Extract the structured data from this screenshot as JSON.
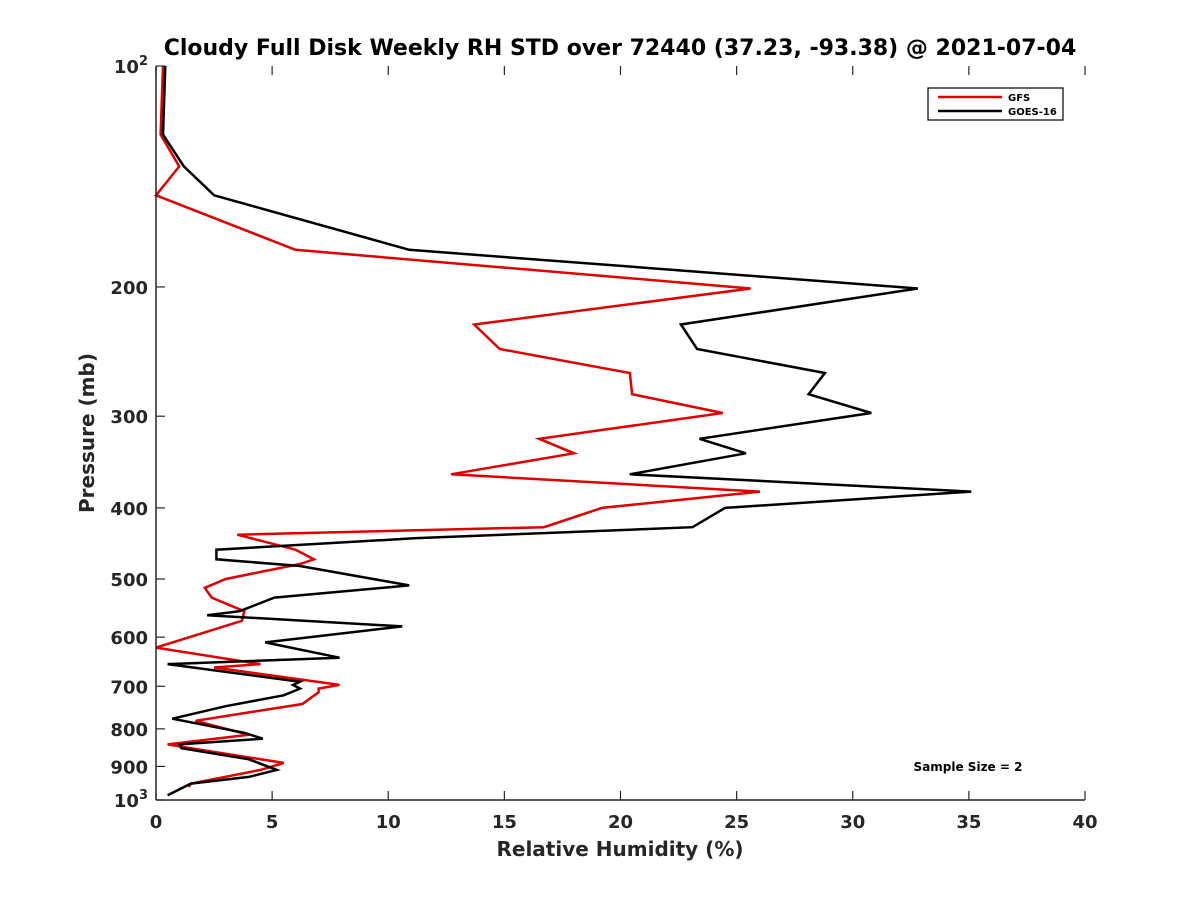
{
  "chart_data": {
    "type": "line",
    "title": "Cloudy Full Disk Weekly RH STD over 72440 (37.23, -93.38) @ 2021-07-04",
    "xlabel": "Relative Humidity (%)",
    "ylabel": "Pressure (mb)",
    "xlim": [
      0,
      40
    ],
    "ylim": [
      100,
      1000
    ],
    "y_scale": "log",
    "y_reversed": true,
    "x_ticks": [
      "0",
      "5",
      "10",
      "15",
      "20",
      "25",
      "30",
      "35",
      "40"
    ],
    "x_tick_values": [
      0,
      5,
      10,
      15,
      20,
      25,
      30,
      35,
      40
    ],
    "y_ticks": [
      {
        "value": 100,
        "base": "10",
        "sup": "2"
      },
      {
        "value": 200,
        "label": "200"
      },
      {
        "value": 300,
        "label": "300"
      },
      {
        "value": 400,
        "label": "400"
      },
      {
        "value": 500,
        "label": "500"
      },
      {
        "value": 600,
        "label": "600"
      },
      {
        "value": 700,
        "label": "700"
      },
      {
        "value": 800,
        "label": "800"
      },
      {
        "value": 900,
        "label": "900"
      },
      {
        "value": 1000,
        "base": "10",
        "sup": "3"
      }
    ],
    "grid": false,
    "legend_position": "top-right",
    "annotation": "Sample Size = 2",
    "series": [
      {
        "name": "GFS",
        "color": "#e00000",
        "x": [
          0.3,
          0.2,
          1.0,
          0.0,
          6.0,
          25.6,
          13.7,
          14.8,
          20.4,
          20.5,
          24.4,
          16.5,
          18.0,
          12.7,
          26.0,
          19.2,
          16.7,
          3.5,
          6.0,
          6.8,
          6.2,
          3.0,
          2.1,
          2.4,
          3.8,
          3.7,
          0.0,
          4.5,
          2.5,
          7.9,
          7.0,
          7.0,
          6.3,
          1.7,
          4.0,
          0.5,
          1.5,
          5.5,
          4.5,
          1.5,
          1.4
        ],
        "y": [
          100,
          124,
          137,
          150,
          178,
          201,
          225,
          243,
          262,
          280,
          297,
          322,
          337,
          360,
          380,
          400,
          425,
          435,
          456,
          470,
          477,
          500,
          514,
          530,
          553,
          570,
          620,
          653,
          660,
          697,
          705,
          713,
          740,
          780,
          815,
          840,
          850,
          890,
          910,
          950,
          960
        ]
      },
      {
        "name": "GOES-16",
        "color": "#000000",
        "x": [
          0.4,
          0.3,
          1.2,
          2.5,
          10.9,
          32.8,
          22.6,
          23.3,
          28.8,
          28.1,
          30.8,
          23.4,
          25.4,
          20.4,
          35.1,
          24.5,
          23.1,
          11.1,
          2.6,
          2.6,
          6.2,
          10.9,
          5.1,
          3.6,
          2.2,
          10.6,
          4.7,
          7.9,
          0.5,
          6.2,
          5.9,
          6.2,
          5.5,
          3.0,
          0.7,
          3.8,
          4.6,
          1.0,
          1.1,
          4.0,
          5.2,
          4.0,
          1.5,
          0.5
        ],
        "y": [
          100,
          124,
          137,
          150,
          178,
          201,
          225,
          243,
          262,
          280,
          297,
          322,
          337,
          360,
          380,
          400,
          425,
          440,
          456,
          470,
          480,
          510,
          530,
          553,
          560,
          580,
          610,
          640,
          653,
          690,
          697,
          705,
          720,
          745,
          775,
          810,
          825,
          840,
          850,
          880,
          910,
          930,
          950,
          985
        ]
      }
    ]
  }
}
